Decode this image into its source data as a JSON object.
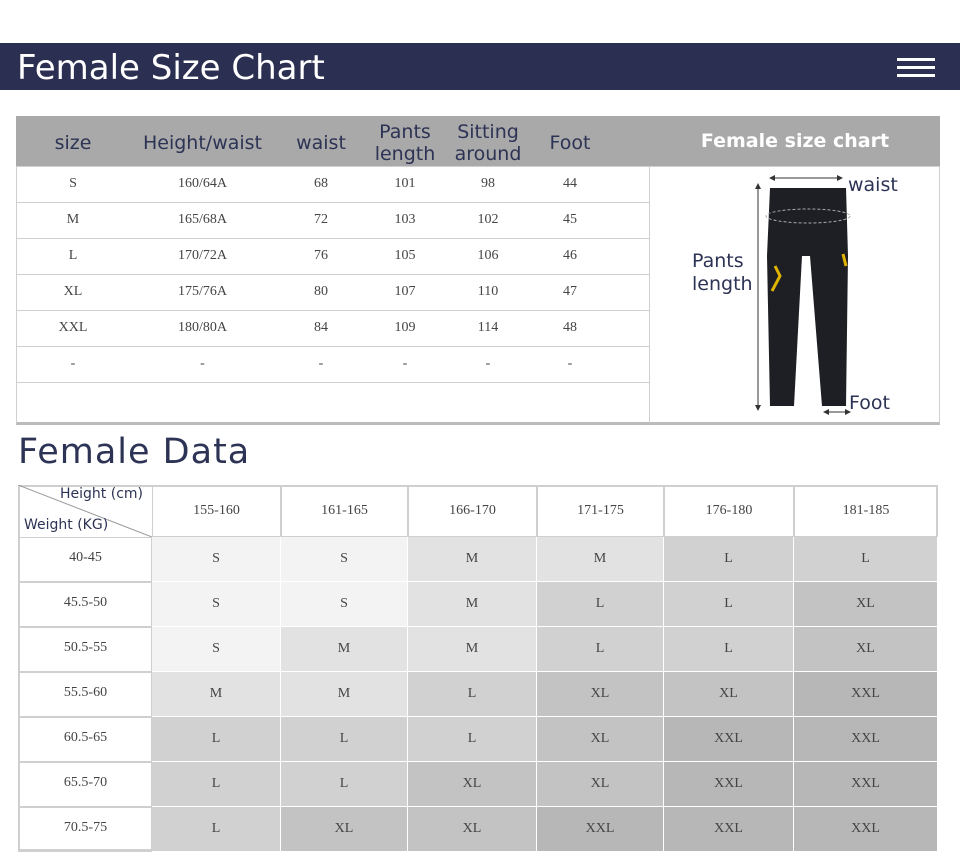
{
  "header": {
    "title": "Female Size Chart"
  },
  "size_table": {
    "columns": [
      "size",
      "Height/waist",
      "waist",
      "Pants length",
      "Sitting around",
      "Foot"
    ],
    "rows": [
      [
        "S",
        "160/64A",
        "68",
        "101",
        "98",
        "44"
      ],
      [
        "M",
        "165/68A",
        "72",
        "103",
        "102",
        "45"
      ],
      [
        "L",
        "170/72A",
        "76",
        "105",
        "106",
        "46"
      ],
      [
        "XL",
        "175/76A",
        "80",
        "107",
        "110",
        "47"
      ],
      [
        "XXL",
        "180/80A",
        "84",
        "109",
        "114",
        "48"
      ],
      [
        "-",
        "-",
        "-",
        "-",
        "-",
        "-"
      ]
    ],
    "panel": {
      "title": "Female size chart",
      "waist_label": "waist",
      "length_label": "Pants length",
      "foot_label": "Foot"
    }
  },
  "data_table": {
    "title": "Female Data",
    "height_label": "Height (cm)",
    "weight_label": "Weight (KG)",
    "columns": [
      "155-160",
      "161-165",
      "166-170",
      "171-175",
      "176-180",
      "181-185"
    ],
    "rows": [
      {
        "weight": "40-45",
        "sizes": [
          "S",
          "S",
          "M",
          "M",
          "L",
          "L"
        ]
      },
      {
        "weight": "45.5-50",
        "sizes": [
          "S",
          "S",
          "M",
          "L",
          "L",
          "XL"
        ]
      },
      {
        "weight": "50.5-55",
        "sizes": [
          "S",
          "M",
          "M",
          "L",
          "L",
          "XL"
        ]
      },
      {
        "weight": "55.5-60",
        "sizes": [
          "M",
          "M",
          "L",
          "XL",
          "XL",
          "XXL"
        ]
      },
      {
        "weight": "60.5-65",
        "sizes": [
          "L",
          "L",
          "L",
          "XL",
          "XXL",
          "XXL"
        ]
      },
      {
        "weight": "65.5-70",
        "sizes": [
          "L",
          "L",
          "XL",
          "XL",
          "XXL",
          "XXL"
        ]
      },
      {
        "weight": "70.5-75",
        "sizes": [
          "L",
          "XL",
          "XL",
          "XXL",
          "XXL",
          "XXL"
        ]
      }
    ]
  }
}
